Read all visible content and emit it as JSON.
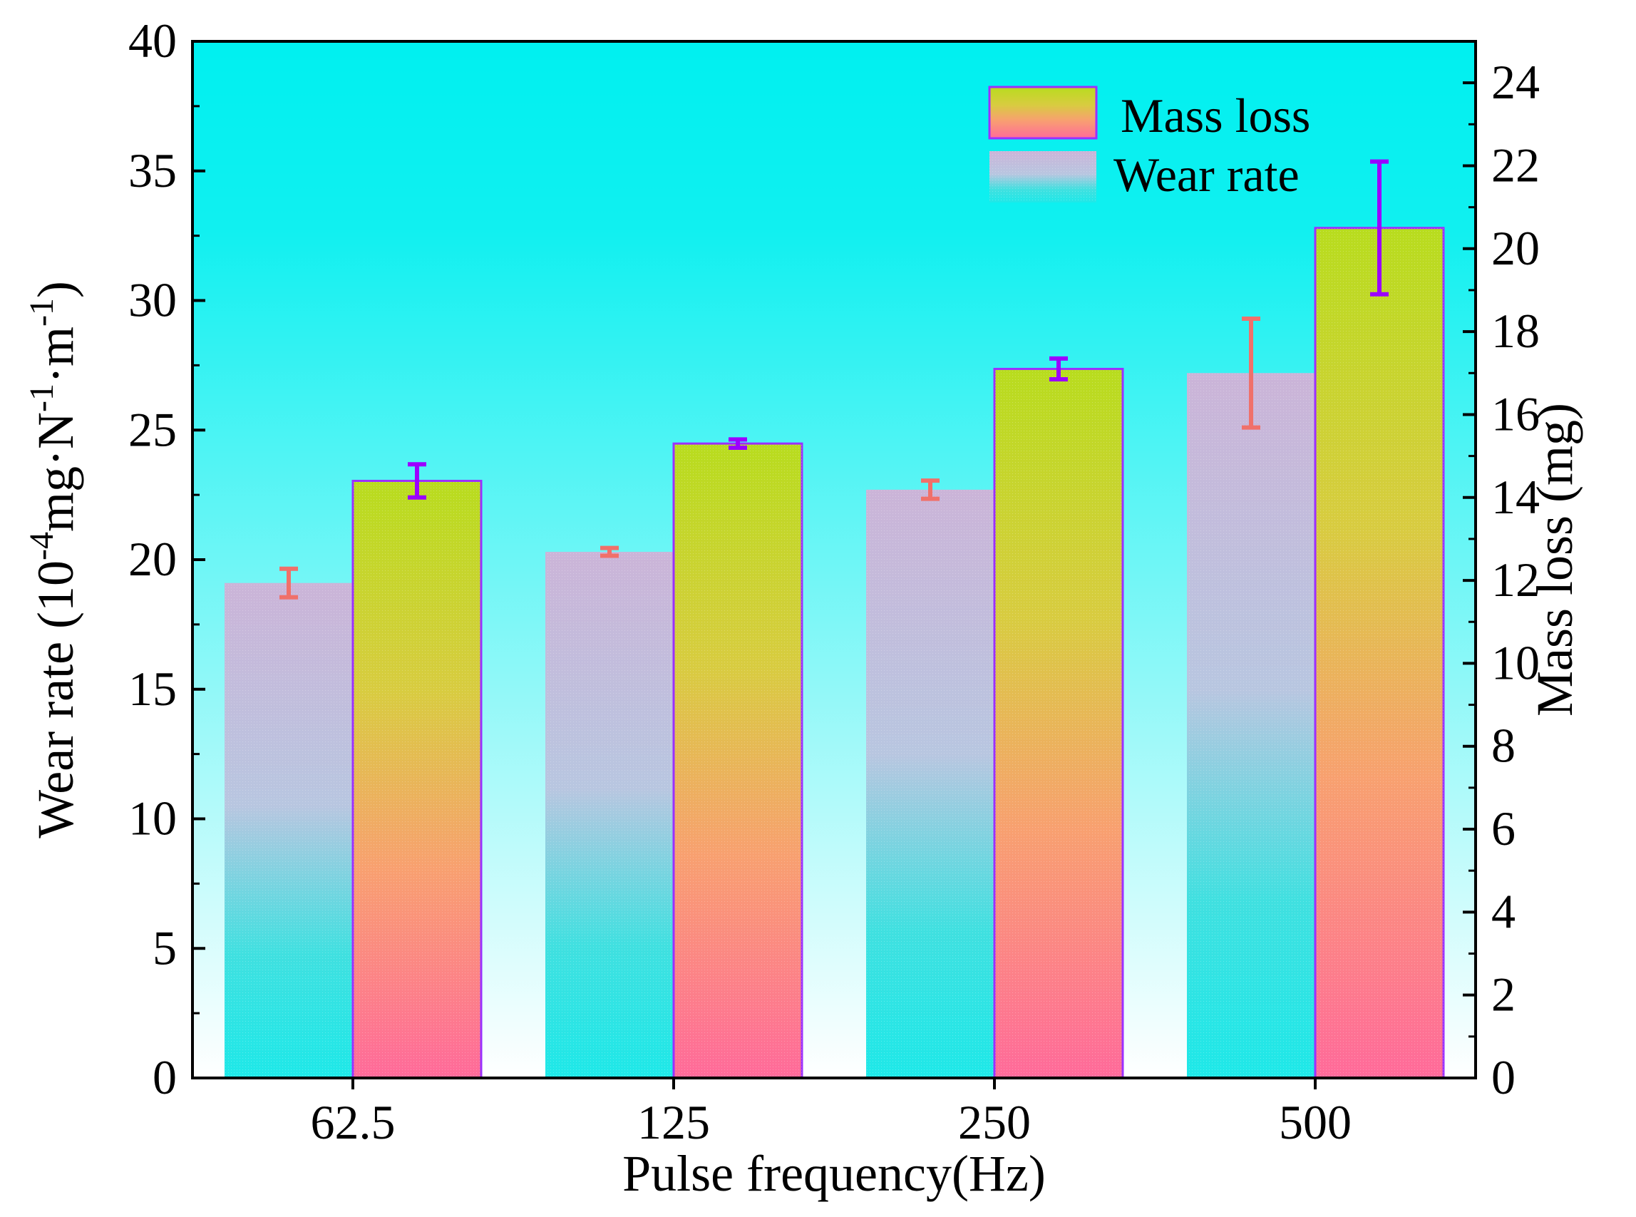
{
  "chart_data": {
    "type": "bar",
    "categories": [
      "62.5",
      "125",
      "250",
      "500"
    ],
    "xlabel": "Pulse frequency(Hz)",
    "ylabel_left": {
      "prefix": "Wear rate (10",
      "exp1": "-4",
      "mid1": "mg·N",
      "exp2": "-1",
      "mid2": "·m",
      "exp3": "-1",
      "suffix": ")"
    },
    "ylabel_right": "Mass loss (mg)",
    "ylim_left": [
      0,
      40
    ],
    "ylim_right": [
      0,
      25
    ],
    "yticks_left": [
      0,
      5,
      10,
      15,
      20,
      25,
      30,
      35,
      40
    ],
    "yticks_right": [
      0,
      2,
      4,
      6,
      8,
      10,
      12,
      14,
      16,
      18,
      20,
      22,
      24
    ],
    "series": [
      {
        "name": "Wear rate",
        "axis": "left",
        "values": [
          19.1,
          20.3,
          22.7,
          27.2
        ],
        "errors": [
          0.55,
          0.15,
          0.35,
          2.1
        ],
        "color_top": "#cbb4d8",
        "color_bottom": "#1ee8e8",
        "error_color": "#f0706a"
      },
      {
        "name": "Mass loss",
        "axis": "right",
        "values": [
          14.4,
          15.3,
          17.1,
          20.5
        ],
        "errors": [
          0.4,
          0.1,
          0.25,
          1.6
        ],
        "color_top": "#b8dc1e",
        "color_bottom": "#ff6a9a",
        "edge_color": "#9b30ff",
        "error_color": "#9b00ff"
      }
    ],
    "legend": [
      "Mass loss",
      "Wear rate"
    ],
    "legend_position": "top-right",
    "background_top": "#00f0f0",
    "background_bottom": "#ffffff"
  }
}
